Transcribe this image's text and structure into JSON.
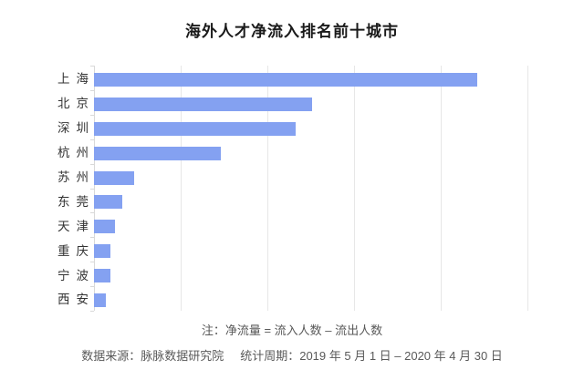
{
  "title": "海外人才净流入排名前十城市",
  "notes": {
    "formula": "注：净流量 = 流入人数 – 流出人数",
    "source": "数据来源：脉脉数据研究院",
    "period": "统计周期：2019 年 5 月 1 日 – 2020 年 4 月 30 日"
  },
  "colors": {
    "bar": "#84a1f1",
    "gridline": "#e7e7e7",
    "axis_line": "#d9d9d9",
    "title_text": "#1a1a1a",
    "category_text": "#333333",
    "note_text": "#595959",
    "background": "#ffffff"
  },
  "chart_data": {
    "type": "bar",
    "orientation": "horizontal",
    "title": "海外人才净流入排名前十城市",
    "categories": [
      "上海",
      "北京",
      "深圳",
      "杭州",
      "苏州",
      "东莞",
      "天津",
      "重庆",
      "宁波",
      "西安"
    ],
    "values_pct_of_max": [
      100,
      56.9,
      52.7,
      33.0,
      10.5,
      7.5,
      5.5,
      4.4,
      4.4,
      3.3
    ],
    "values_gridline_units": [
      4.42,
      2.52,
      2.33,
      1.46,
      0.46,
      0.33,
      0.24,
      0.19,
      0.19,
      0.14
    ],
    "value_axis": {
      "tick_labels_visible": false,
      "gridline_intervals": 5
    },
    "xlabel": "",
    "ylabel": "",
    "grid": true,
    "legend": false,
    "sorted": "descending"
  }
}
